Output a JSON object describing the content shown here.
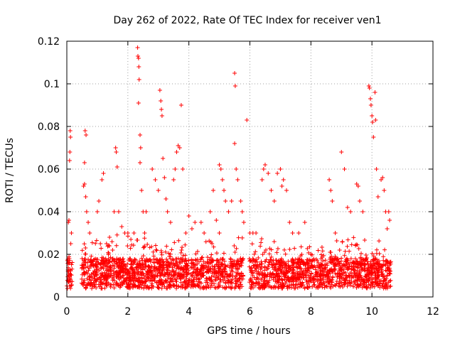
{
  "chart_data": {
    "type": "scatter",
    "title": "Day 262 of 2022, Rate Of TEC Index for receiver ven1",
    "xlabel": "GPS time / hours",
    "ylabel": "ROTI / TECUs",
    "xlim": [
      0,
      12
    ],
    "ylim": [
      0,
      0.12
    ],
    "x_ticks": [
      "0",
      "2",
      "4",
      "6",
      "8",
      "10",
      "12"
    ],
    "y_ticks": [
      "0",
      "0.02",
      "0.04",
      "0.06",
      "0.08",
      "0.1",
      "0.12"
    ],
    "grid": true,
    "marker": "+",
    "color": "#ff0000",
    "series": [
      {
        "name": "ROTI",
        "points": [
          [
            0.02,
            0.004
          ],
          [
            0.04,
            0.012
          ],
          [
            0.06,
            0.007
          ],
          [
            0.08,
            0.018
          ],
          [
            0.1,
            0.009
          ],
          [
            0.05,
            0.035
          ],
          [
            0.07,
            0.036
          ],
          [
            0.1,
            0.068
          ],
          [
            0.11,
            0.078
          ],
          [
            0.12,
            0.075
          ],
          [
            0.09,
            0.064
          ],
          [
            0.13,
            0.025
          ],
          [
            0.15,
            0.03
          ],
          [
            0.55,
            0.052
          ],
          [
            0.58,
            0.053
          ],
          [
            0.62,
            0.047
          ],
          [
            0.65,
            0.04
          ],
          [
            0.6,
            0.078
          ],
          [
            0.63,
            0.076
          ],
          [
            0.58,
            0.063
          ],
          [
            0.7,
            0.035
          ],
          [
            0.75,
            0.03
          ],
          [
            0.5,
            0.018
          ],
          [
            1.0,
            0.04
          ],
          [
            1.05,
            0.045
          ],
          [
            1.1,
            0.025
          ],
          [
            1.15,
            0.055
          ],
          [
            1.2,
            0.058
          ],
          [
            1.3,
            0.025
          ],
          [
            1.4,
            0.028
          ],
          [
            1.5,
            0.022
          ],
          [
            1.55,
            0.04
          ],
          [
            1.6,
            0.07
          ],
          [
            1.62,
            0.068
          ],
          [
            1.65,
            0.061
          ],
          [
            1.7,
            0.04
          ],
          [
            1.8,
            0.033
          ],
          [
            1.9,
            0.03
          ],
          [
            2.0,
            0.03
          ],
          [
            2.1,
            0.027
          ],
          [
            2.2,
            0.03
          ],
          [
            2.32,
            0.117
          ],
          [
            2.33,
            0.113
          ],
          [
            2.35,
            0.112
          ],
          [
            2.36,
            0.108
          ],
          [
            2.37,
            0.102
          ],
          [
            2.35,
            0.091
          ],
          [
            2.4,
            0.076
          ],
          [
            2.42,
            0.07
          ],
          [
            2.4,
            0.063
          ],
          [
            2.45,
            0.05
          ],
          [
            2.5,
            0.04
          ],
          [
            2.55,
            0.03
          ],
          [
            2.6,
            0.04
          ],
          [
            2.8,
            0.06
          ],
          [
            2.9,
            0.055
          ],
          [
            3.0,
            0.05
          ],
          [
            3.05,
            0.097
          ],
          [
            3.08,
            0.092
          ],
          [
            3.1,
            0.088
          ],
          [
            3.12,
            0.085
          ],
          [
            3.15,
            0.065
          ],
          [
            3.2,
            0.056
          ],
          [
            3.25,
            0.046
          ],
          [
            3.3,
            0.04
          ],
          [
            3.4,
            0.035
          ],
          [
            3.5,
            0.055
          ],
          [
            3.55,
            0.06
          ],
          [
            3.6,
            0.068
          ],
          [
            3.65,
            0.071
          ],
          [
            3.7,
            0.07
          ],
          [
            3.75,
            0.09
          ],
          [
            3.8,
            0.06
          ],
          [
            3.9,
            0.03
          ],
          [
            4.0,
            0.038
          ],
          [
            4.1,
            0.032
          ],
          [
            4.2,
            0.035
          ],
          [
            4.4,
            0.035
          ],
          [
            4.5,
            0.03
          ],
          [
            4.7,
            0.04
          ],
          [
            4.8,
            0.05
          ],
          [
            4.9,
            0.036
          ],
          [
            5.0,
            0.03
          ],
          [
            5.0,
            0.062
          ],
          [
            5.05,
            0.06
          ],
          [
            5.1,
            0.055
          ],
          [
            5.15,
            0.05
          ],
          [
            5.2,
            0.045
          ],
          [
            5.3,
            0.04
          ],
          [
            5.4,
            0.045
          ],
          [
            5.5,
            0.105
          ],
          [
            5.52,
            0.099
          ],
          [
            5.5,
            0.072
          ],
          [
            5.55,
            0.06
          ],
          [
            5.6,
            0.055
          ],
          [
            5.7,
            0.045
          ],
          [
            5.75,
            0.04
          ],
          [
            5.8,
            0.035
          ],
          [
            5.9,
            0.083
          ],
          [
            6.0,
            0.03
          ],
          [
            6.1,
            0.03
          ],
          [
            6.2,
            0.03
          ],
          [
            6.4,
            0.055
          ],
          [
            6.45,
            0.06
          ],
          [
            6.5,
            0.062
          ],
          [
            6.6,
            0.058
          ],
          [
            6.7,
            0.05
          ],
          [
            6.8,
            0.045
          ],
          [
            6.9,
            0.058
          ],
          [
            7.0,
            0.06
          ],
          [
            7.05,
            0.052
          ],
          [
            7.1,
            0.055
          ],
          [
            7.2,
            0.05
          ],
          [
            7.3,
            0.035
          ],
          [
            7.4,
            0.03
          ],
          [
            7.6,
            0.03
          ],
          [
            7.8,
            0.035
          ],
          [
            8.0,
            0.02
          ],
          [
            8.6,
            0.055
          ],
          [
            8.65,
            0.05
          ],
          [
            8.7,
            0.045
          ],
          [
            8.8,
            0.03
          ],
          [
            9.0,
            0.068
          ],
          [
            9.1,
            0.06
          ],
          [
            9.2,
            0.042
          ],
          [
            9.3,
            0.04
          ],
          [
            9.5,
            0.053
          ],
          [
            9.55,
            0.052
          ],
          [
            9.6,
            0.045
          ],
          [
            9.7,
            0.04
          ],
          [
            9.9,
            0.099
          ],
          [
            9.92,
            0.098
          ],
          [
            9.95,
            0.093
          ],
          [
            9.97,
            0.09
          ],
          [
            10.0,
            0.085
          ],
          [
            10.02,
            0.082
          ],
          [
            10.05,
            0.075
          ],
          [
            10.1,
            0.096
          ],
          [
            10.12,
            0.083
          ],
          [
            10.15,
            0.06
          ],
          [
            10.2,
            0.047
          ],
          [
            10.3,
            0.055
          ],
          [
            10.35,
            0.056
          ],
          [
            10.4,
            0.05
          ],
          [
            10.45,
            0.04
          ],
          [
            10.5,
            0.032
          ],
          [
            10.55,
            0.04
          ],
          [
            10.58,
            0.036
          ]
        ]
      }
    ],
    "annotations": [
      "Dense background band of points at ROTI ~0.002–0.02 TECUs, with gaps near 0.2–0.5 h and around 5.8–6.0 h; data coverage ends ~10.6 h."
    ]
  }
}
